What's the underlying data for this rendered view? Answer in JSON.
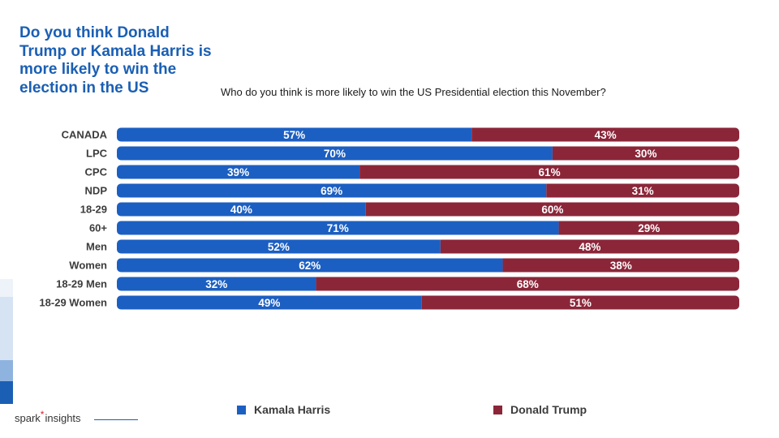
{
  "headline": "Do you think Donald Trump or Kamala Harris is more likely to win the election in the US",
  "question": "Who do you think is more likely to win the US Presidential election this November?",
  "colors": {
    "harris": "#1c5fc2",
    "trump": "#8b2639",
    "headline": "#1a5fb4"
  },
  "legend": {
    "harris": "Kamala Harris",
    "trump": "Donald Trump"
  },
  "logo": {
    "word1": "spark",
    "word2": "insights"
  },
  "chart_data": {
    "type": "bar",
    "orientation": "horizontal",
    "stacked": true,
    "unit": "%",
    "xlim": [
      0,
      100
    ],
    "grid": false,
    "legend_placement": "bottom",
    "categories": [
      "CANADA",
      "LPC",
      "CPC",
      "NDP",
      "18-29",
      "60+",
      "Men",
      "Women",
      "18-29 Men",
      "18-29 Women"
    ],
    "groups": [
      [
        "CANADA"
      ],
      [
        "LPC",
        "CPC",
        "NDP"
      ],
      [
        "18-29",
        "60+"
      ],
      [
        "Men",
        "Women"
      ],
      [
        "18-29 Men",
        "18-29 Women"
      ]
    ],
    "series": [
      {
        "name": "Kamala Harris",
        "values": [
          57,
          70,
          39,
          69,
          40,
          71,
          52,
          62,
          32,
          49
        ]
      },
      {
        "name": "Donald Trump",
        "values": [
          43,
          30,
          61,
          31,
          60,
          29,
          48,
          38,
          68,
          51
        ]
      }
    ]
  }
}
